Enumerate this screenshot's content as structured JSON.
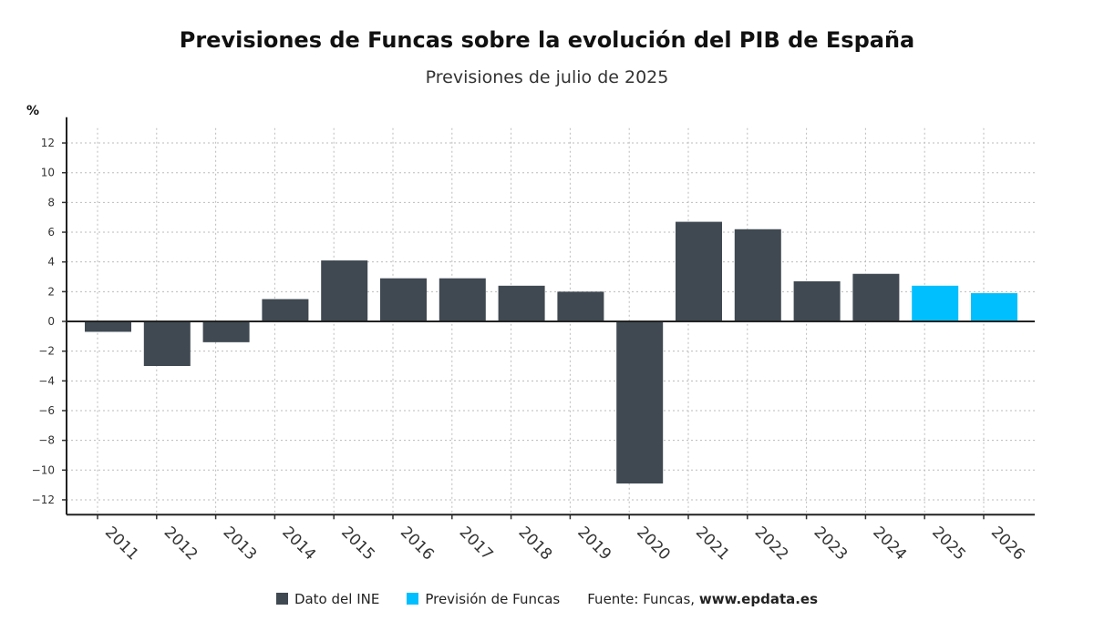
{
  "chart_data": {
    "type": "bar",
    "title": "Previsiones de Funcas sobre la evolución del PIB de España",
    "subtitle": "Previsiones de julio de 2025",
    "ylabel": "%",
    "xlabel": "",
    "ylim": [
      -13,
      13
    ],
    "yticks": [
      12,
      10,
      8,
      6,
      4,
      2,
      0,
      -2,
      -4,
      -6,
      -8,
      -10,
      -12
    ],
    "grid": true,
    "legend_position": "bottom",
    "categories": [
      "2011",
      "2012",
      "2013",
      "2014",
      "2015",
      "2016",
      "2017",
      "2018",
      "2019",
      "2020",
      "2021",
      "2022",
      "2023",
      "2024",
      "2025",
      "2026"
    ],
    "values": [
      -0.7,
      -3.0,
      -1.4,
      1.5,
      4.1,
      2.9,
      2.9,
      2.4,
      2.0,
      -10.9,
      6.7,
      6.2,
      2.7,
      3.2,
      2.4,
      1.9
    ],
    "series_index": [
      0,
      0,
      0,
      0,
      0,
      0,
      0,
      0,
      0,
      0,
      0,
      0,
      0,
      0,
      1,
      1
    ],
    "series": [
      {
        "name": "Dato del INE",
        "color": "#404952"
      },
      {
        "name": "Previsión de Funcas",
        "color": "#00BFFF"
      }
    ],
    "source_label": "Fuente: Funcas,",
    "source_site": "www.epdata.es"
  }
}
